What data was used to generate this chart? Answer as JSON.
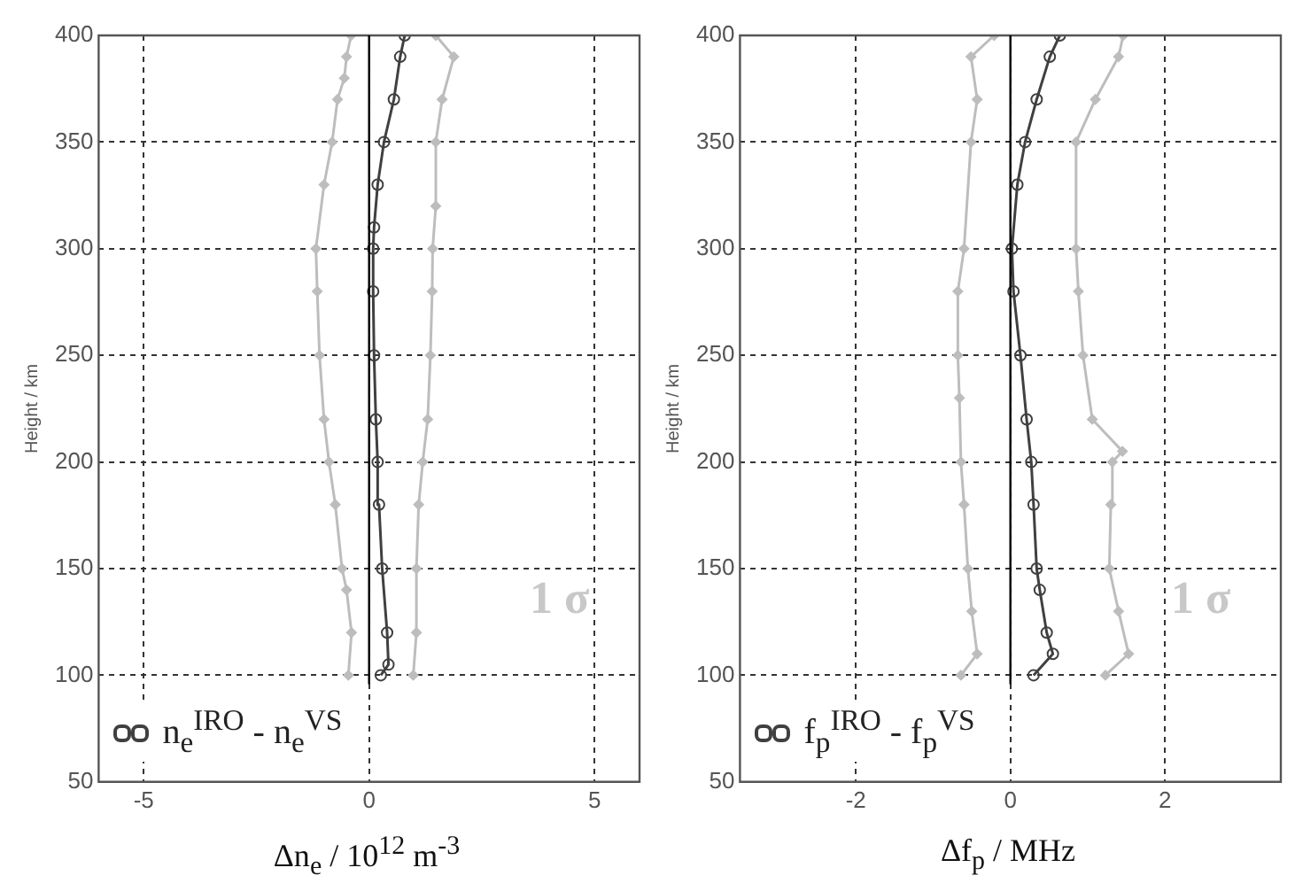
{
  "chart_data": [
    {
      "type": "line",
      "xlabel": "Δn$_{e}$ / 10$^{12}$ m$^{-3}$",
      "ylabel": "Height / km",
      "xlim": [
        -6,
        6
      ],
      "xticks": [
        -5,
        0,
        5
      ],
      "ylim": [
        50,
        400
      ],
      "yticks": [
        50,
        100,
        150,
        200,
        250,
        300,
        350,
        400
      ],
      "grid": true,
      "legend": "bottom left",
      "line_style": "solid",
      "annotations": [
        "1 σ"
      ],
      "ref_lines": [
        {
          "axis": "x",
          "value": 0,
          "color": "#000000"
        }
      ],
      "series": [
        {
          "color": "#bdbdbd",
          "marker": "diamond",
          "x": [
            -0.46,
            -0.39,
            -0.5,
            -0.6,
            -0.75,
            -0.89,
            -1.0,
            -1.1,
            -1.15,
            -1.18,
            -1.0,
            -0.82,
            -0.7,
            -0.55,
            -0.5,
            -0.4
          ],
          "values": [
            100,
            120,
            140,
            150,
            180,
            200,
            220,
            250,
            280,
            300,
            330,
            350,
            370,
            380,
            390,
            400
          ]
        },
        {
          "color": "#bdbdbd",
          "marker": "diamond",
          "x": [
            0.98,
            1.05,
            1.05,
            1.1,
            1.19,
            1.3,
            1.36,
            1.4,
            1.41,
            1.48,
            1.48,
            1.62,
            1.88,
            1.48
          ],
          "values": [
            100,
            120,
            150,
            180,
            200,
            220,
            250,
            280,
            300,
            320,
            350,
            370,
            390,
            400
          ]
        },
        {
          "name": "n$_{e}$$^{IRO}$ - n$_{e}$$^{VS}$",
          "color": "#404040",
          "marker": "circle",
          "x": [
            0.26,
            0.43,
            0.4,
            0.29,
            0.22,
            0.19,
            0.15,
            0.11,
            0.09,
            0.09,
            0.11,
            0.19,
            0.33,
            0.55,
            0.69,
            0.79
          ],
          "values": [
            100,
            105,
            120,
            150,
            180,
            200,
            220,
            250,
            280,
            300,
            310,
            330,
            350,
            370,
            390,
            400
          ]
        }
      ]
    },
    {
      "type": "line",
      "xlabel": "Δf$_{p}$ / MHz",
      "ylabel": "Height / km",
      "xlim": [
        -3.5,
        3.5
      ],
      "xticks": [
        -2,
        0,
        2
      ],
      "ylim": [
        50,
        400
      ],
      "yticks": [
        50,
        100,
        150,
        200,
        250,
        300,
        350,
        400
      ],
      "grid": true,
      "legend": "bottom left",
      "line_style": "solid",
      "annotations": [
        "1 σ"
      ],
      "ref_lines": [
        {
          "axis": "x",
          "value": 0,
          "color": "#000000"
        }
      ],
      "series": [
        {
          "color": "#bdbdbd",
          "marker": "diamond",
          "x": [
            -0.64,
            -0.43,
            -0.5,
            -0.55,
            -0.6,
            -0.64,
            -0.66,
            -0.68,
            -0.68,
            -0.6,
            -0.51,
            -0.43,
            -0.51,
            -0.21
          ],
          "values": [
            100,
            110,
            130,
            150,
            180,
            200,
            230,
            250,
            280,
            300,
            350,
            370,
            390,
            400
          ]
        },
        {
          "color": "#bdbdbd",
          "marker": "diamond",
          "x": [
            1.23,
            1.53,
            1.4,
            1.28,
            1.3,
            1.32,
            1.45,
            1.06,
            0.94,
            0.88,
            0.85,
            0.85,
            1.1,
            1.4,
            1.46
          ],
          "values": [
            100,
            110,
            130,
            150,
            180,
            200,
            205,
            220,
            250,
            280,
            300,
            350,
            370,
            390,
            400
          ]
        },
        {
          "name": "f$_{p}$$^{IRO}$ - f$_{p}$$^{VS}$",
          "color": "#404040",
          "marker": "circle",
          "x": [
            0.3,
            0.55,
            0.47,
            0.38,
            0.34,
            0.3,
            0.27,
            0.21,
            0.13,
            0.04,
            0.02,
            0.09,
            0.19,
            0.34,
            0.51,
            0.64
          ],
          "values": [
            100,
            110,
            120,
            140,
            150,
            180,
            200,
            220,
            250,
            280,
            300,
            330,
            350,
            370,
            390,
            400
          ]
        }
      ]
    }
  ]
}
